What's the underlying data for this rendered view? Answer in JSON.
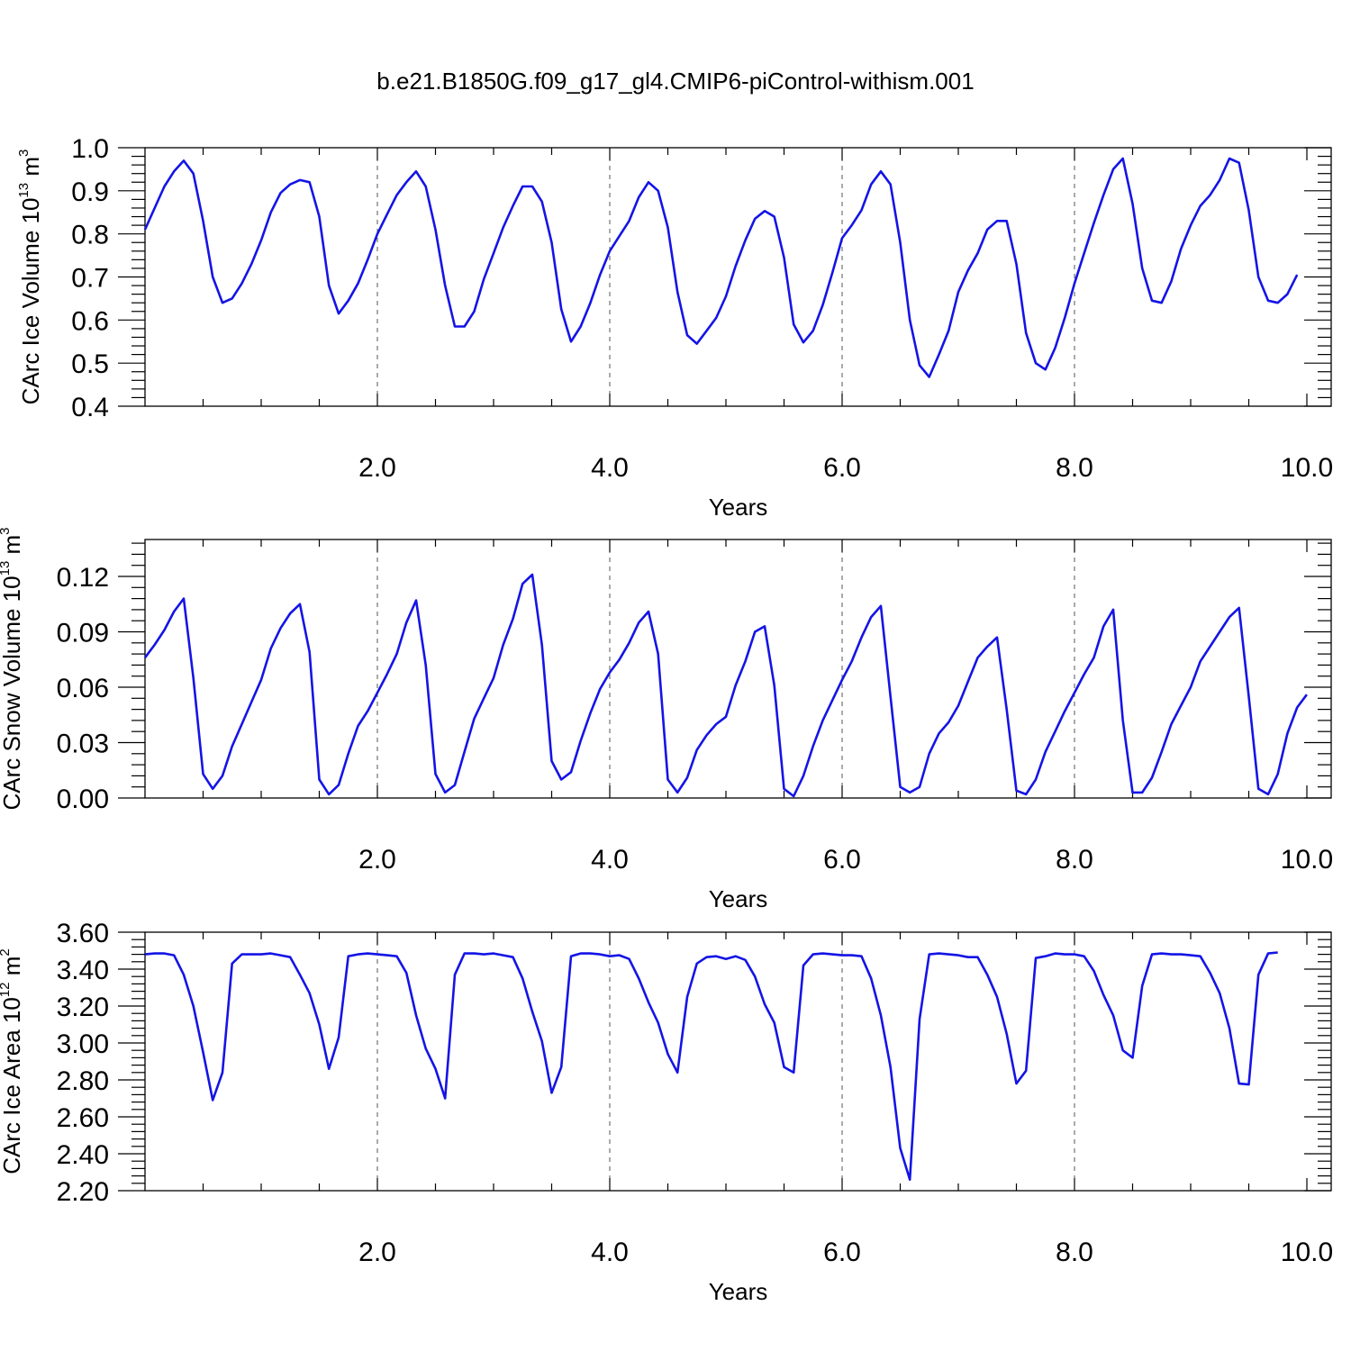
{
  "title": "b.e21.B1850G.f09_g17_gl4.CMIP6-piControl-withism.001",
  "colors": {
    "series": "#1414e6",
    "frame": "#000000",
    "grid": "#555555"
  },
  "chart_data": [
    {
      "type": "line",
      "xlabel": "Years",
      "ylabel": {
        "prefix": "CArc Ice Volume 10",
        "exponent": "13",
        "unit": " m",
        "unit_exponent": "3"
      },
      "xlim": [
        0,
        10
      ],
      "ylim": [
        0.4,
        1.0
      ],
      "xticks": [
        2,
        4,
        6,
        8,
        10
      ],
      "xtick_labels": [
        "2.0",
        "4.0",
        "6.0",
        "8.0",
        "10.0"
      ],
      "yticks": [
        0.4,
        0.5,
        0.6,
        0.7,
        0.8,
        0.9,
        1.0
      ],
      "ytick_labels": [
        "0.4",
        "0.5",
        "0.6",
        "0.7",
        "0.8",
        "0.9",
        "1.0"
      ],
      "grid": "dashed vertical at major x ticks",
      "series": [
        {
          "x_start": 0.0,
          "x_step": 0.08333,
          "values": [
            0.81,
            0.86,
            0.91,
            0.945,
            0.97,
            0.94,
            0.83,
            0.7,
            0.64,
            0.65,
            0.685,
            0.73,
            0.785,
            0.85,
            0.895,
            0.915,
            0.925,
            0.92,
            0.84,
            0.68,
            0.615,
            0.645,
            0.685,
            0.74,
            0.8,
            0.845,
            0.89,
            0.92,
            0.945,
            0.91,
            0.81,
            0.68,
            0.585,
            0.585,
            0.62,
            0.695,
            0.755,
            0.815,
            0.865,
            0.91,
            0.91,
            0.875,
            0.78,
            0.625,
            0.55,
            0.585,
            0.64,
            0.705,
            0.76,
            0.795,
            0.83,
            0.885,
            0.92,
            0.9,
            0.815,
            0.665,
            0.565,
            0.545,
            0.575,
            0.605,
            0.655,
            0.725,
            0.785,
            0.835,
            0.853,
            0.84,
            0.745,
            0.59,
            0.548,
            0.575,
            0.635,
            0.71,
            0.79,
            0.82,
            0.855,
            0.915,
            0.945,
            0.915,
            0.78,
            0.6,
            0.495,
            0.468,
            0.52,
            0.575,
            0.665,
            0.715,
            0.755,
            0.81,
            0.83,
            0.83,
            0.73,
            0.57,
            0.5,
            0.485,
            0.535,
            0.605,
            0.685,
            0.755,
            0.825,
            0.89,
            0.95,
            0.975,
            0.87,
            0.72,
            0.645,
            0.64,
            0.69,
            0.765,
            0.82,
            0.865,
            0.89,
            0.925,
            0.975,
            0.965,
            0.855,
            0.7,
            0.645,
            0.64,
            0.66,
            0.705
          ]
        }
      ]
    },
    {
      "type": "line",
      "xlabel": "Years",
      "ylabel": {
        "prefix": "CArc Snow Volume 10",
        "exponent": "13",
        "unit": " m",
        "unit_exponent": "3"
      },
      "xlim": [
        0,
        10
      ],
      "ylim": [
        0.0,
        0.14
      ],
      "xticks": [
        2,
        4,
        6,
        8,
        10
      ],
      "xtick_labels": [
        "2.0",
        "4.0",
        "6.0",
        "8.0",
        "10.0"
      ],
      "yticks": [
        0.0,
        0.03,
        0.06,
        0.09,
        0.12
      ],
      "ytick_labels": [
        "0.00",
        "0.03",
        "0.06",
        "0.09",
        "0.12"
      ],
      "grid": "dashed vertical at major x ticks",
      "series": [
        {
          "x_start": 0.0,
          "x_step": 0.08333,
          "values": [
            0.076,
            0.083,
            0.091,
            0.101,
            0.108,
            0.065,
            0.013,
            0.005,
            0.012,
            0.028,
            0.04,
            0.052,
            0.064,
            0.081,
            0.092,
            0.1,
            0.105,
            0.079,
            0.01,
            0.002,
            0.007,
            0.024,
            0.039,
            0.047,
            0.057,
            0.067,
            0.078,
            0.095,
            0.107,
            0.072,
            0.013,
            0.003,
            0.007,
            0.025,
            0.043,
            0.054,
            0.065,
            0.083,
            0.097,
            0.116,
            0.121,
            0.083,
            0.02,
            0.01,
            0.014,
            0.031,
            0.046,
            0.059,
            0.068,
            0.075,
            0.084,
            0.095,
            0.101,
            0.078,
            0.01,
            0.003,
            0.011,
            0.026,
            0.034,
            0.04,
            0.044,
            0.061,
            0.074,
            0.09,
            0.093,
            0.061,
            0.005,
            0.001,
            0.012,
            0.028,
            0.042,
            0.053,
            0.064,
            0.074,
            0.087,
            0.098,
            0.104,
            0.055,
            0.006,
            0.003,
            0.006,
            0.024,
            0.035,
            0.041,
            0.05,
            0.063,
            0.076,
            0.082,
            0.087,
            0.048,
            0.004,
            0.002,
            0.01,
            0.025,
            0.036,
            0.047,
            0.057,
            0.067,
            0.076,
            0.093,
            0.102,
            0.042,
            0.003,
            0.003,
            0.011,
            0.025,
            0.04,
            0.05,
            0.06,
            0.074,
            0.082,
            0.09,
            0.098,
            0.103,
            0.055,
            0.005,
            0.002,
            0.013,
            0.035,
            0.049,
            0.056
          ]
        }
      ]
    },
    {
      "type": "line",
      "xlabel": "Years",
      "ylabel": {
        "prefix": "CArc Ice Area 10",
        "exponent": "12",
        "unit": " m",
        "unit_exponent": "2"
      },
      "xlim": [
        0,
        10
      ],
      "ylim": [
        2.2,
        3.6
      ],
      "xticks": [
        2,
        4,
        6,
        8,
        10
      ],
      "xtick_labels": [
        "2.0",
        "4.0",
        "6.0",
        "8.0",
        "10.0"
      ],
      "yticks": [
        2.2,
        2.4,
        2.6,
        2.8,
        3.0,
        3.2,
        3.4,
        3.6
      ],
      "ytick_labels": [
        "2.20",
        "2.40",
        "2.60",
        "2.80",
        "3.00",
        "3.20",
        "3.40",
        "3.60"
      ],
      "grid": "dashed vertical at major x ticks",
      "series": [
        {
          "x_start": 0.0,
          "x_step": 0.08333,
          "values": [
            3.48,
            3.485,
            3.485,
            3.475,
            3.37,
            3.2,
            2.95,
            2.69,
            2.84,
            3.43,
            3.48,
            3.48,
            3.48,
            3.485,
            3.475,
            3.465,
            3.37,
            3.27,
            3.1,
            2.86,
            3.03,
            3.47,
            3.48,
            3.485,
            3.48,
            3.475,
            3.47,
            3.38,
            3.15,
            2.97,
            2.86,
            2.7,
            3.37,
            3.485,
            3.485,
            3.48,
            3.485,
            3.475,
            3.465,
            3.35,
            3.17,
            3.01,
            2.73,
            2.87,
            3.47,
            3.485,
            3.485,
            3.48,
            3.47,
            3.475,
            3.455,
            3.35,
            3.22,
            3.11,
            2.94,
            2.84,
            3.25,
            3.43,
            3.465,
            3.47,
            3.455,
            3.47,
            3.45,
            3.36,
            3.21,
            3.11,
            2.87,
            2.84,
            3.42,
            3.48,
            3.485,
            3.48,
            3.475,
            3.475,
            3.47,
            3.35,
            3.15,
            2.87,
            2.43,
            2.26,
            3.13,
            3.48,
            3.485,
            3.48,
            3.475,
            3.465,
            3.465,
            3.37,
            3.25,
            3.05,
            2.78,
            2.85,
            3.46,
            3.47,
            3.485,
            3.48,
            3.48,
            3.47,
            3.39,
            3.26,
            3.15,
            2.96,
            2.92,
            3.31,
            3.48,
            3.485,
            3.48,
            3.48,
            3.475,
            3.47,
            3.38,
            3.27,
            3.08,
            2.78,
            2.775,
            3.37,
            3.485,
            3.49
          ]
        }
      ]
    }
  ]
}
